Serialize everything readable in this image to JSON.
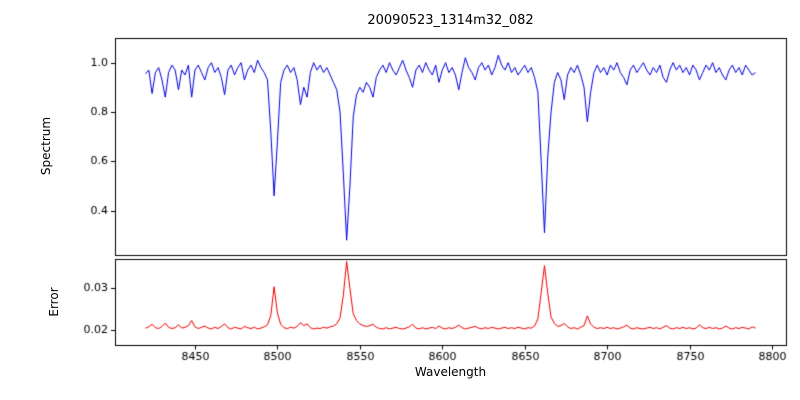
{
  "chart_data": [
    {
      "type": "line",
      "name": "spectrum",
      "title": "20090523_1314m32_082",
      "ylabel": "Spectrum",
      "color": "#0000dd",
      "line_width": 1,
      "x_start": 8420,
      "x_step": 2,
      "xlim": [
        8401.5,
        8808.5
      ],
      "ylim": [
        0.22,
        1.1
      ],
      "yticks": [
        "0.4",
        "0.6",
        "0.8",
        "1.0"
      ],
      "values": [
        0.955,
        0.97,
        0.875,
        0.96,
        0.98,
        0.93,
        0.86,
        0.96,
        0.99,
        0.97,
        0.89,
        0.97,
        0.95,
        0.99,
        0.86,
        0.97,
        0.99,
        0.96,
        0.93,
        0.98,
        1.0,
        0.96,
        0.98,
        0.94,
        0.87,
        0.97,
        0.99,
        0.95,
        0.98,
        1.0,
        0.93,
        0.97,
        0.99,
        0.96,
        1.01,
        0.98,
        0.96,
        0.93,
        0.72,
        0.46,
        0.68,
        0.92,
        0.97,
        0.99,
        0.96,
        0.98,
        0.93,
        0.83,
        0.9,
        0.86,
        0.96,
        1.0,
        0.97,
        0.99,
        0.96,
        0.98,
        0.95,
        0.92,
        0.89,
        0.8,
        0.55,
        0.28,
        0.5,
        0.78,
        0.87,
        0.9,
        0.88,
        0.92,
        0.9,
        0.86,
        0.94,
        0.97,
        0.99,
        0.96,
        1.0,
        0.97,
        0.95,
        0.98,
        1.01,
        0.97,
        0.94,
        0.9,
        0.97,
        0.99,
        0.96,
        1.0,
        0.97,
        0.95,
        0.99,
        0.92,
        0.97,
        1.0,
        0.96,
        0.98,
        0.95,
        0.89,
        0.96,
        1.02,
        0.98,
        0.96,
        0.93,
        0.98,
        1.0,
        0.97,
        0.99,
        0.95,
        0.98,
        1.03,
        0.99,
        0.97,
        1.0,
        0.96,
        0.98,
        0.95,
        0.97,
        0.99,
        0.96,
        0.98,
        0.94,
        0.88,
        0.6,
        0.31,
        0.62,
        0.8,
        0.92,
        0.96,
        0.93,
        0.85,
        0.95,
        0.98,
        0.96,
        0.99,
        0.95,
        0.9,
        0.76,
        0.88,
        0.96,
        0.99,
        0.96,
        0.98,
        0.95,
        0.99,
        0.97,
        1.0,
        0.96,
        0.94,
        0.91,
        0.97,
        0.99,
        0.96,
        0.98,
        1.0,
        0.97,
        0.95,
        0.98,
        0.96,
        0.99,
        0.94,
        0.92,
        0.97,
        1.0,
        0.97,
        0.99,
        0.96,
        0.98,
        0.95,
        0.99,
        0.97,
        0.93,
        0.96,
        0.99,
        0.97,
        1.0,
        0.96,
        0.98,
        0.95,
        0.93,
        0.97,
        0.99,
        0.96,
        0.98,
        0.95,
        0.99,
        0.97,
        0.95,
        0.96
      ]
    },
    {
      "type": "line",
      "name": "error",
      "ylabel": "Error",
      "xlabel": "Wavelength",
      "color": "#ee0000",
      "line_width": 1,
      "x_start": 8420,
      "x_step": 2,
      "xlim": [
        8401.5,
        8808.5
      ],
      "ylim": [
        0.0164,
        0.0369
      ],
      "yticks": [
        "0.02",
        "0.03"
      ],
      "xticks": [
        "8450",
        "8500",
        "8550",
        "8600",
        "8650",
        "8700",
        "8750",
        "8800"
      ],
      "values": [
        0.0204,
        0.0207,
        0.0213,
        0.0205,
        0.0203,
        0.0208,
        0.0216,
        0.0206,
        0.0203,
        0.0205,
        0.0212,
        0.0204,
        0.0206,
        0.021,
        0.0222,
        0.0207,
        0.0203,
        0.0206,
        0.0209,
        0.0204,
        0.0202,
        0.0206,
        0.0203,
        0.0208,
        0.0214,
        0.0205,
        0.0202,
        0.0206,
        0.0204,
        0.0202,
        0.0208,
        0.0205,
        0.0203,
        0.0206,
        0.0202,
        0.0204,
        0.0207,
        0.0212,
        0.0234,
        0.0302,
        0.024,
        0.0213,
        0.0205,
        0.0203,
        0.0206,
        0.0204,
        0.0208,
        0.0217,
        0.021,
        0.0214,
        0.0205,
        0.0202,
        0.0204,
        0.0203,
        0.0206,
        0.0204,
        0.0207,
        0.0209,
        0.0214,
        0.0228,
        0.0282,
        0.0362,
        0.0298,
        0.0238,
        0.0222,
        0.0214,
        0.021,
        0.0208,
        0.021,
        0.0213,
        0.0206,
        0.0203,
        0.0202,
        0.0205,
        0.0202,
        0.0204,
        0.0206,
        0.0203,
        0.0202,
        0.0204,
        0.0207,
        0.0213,
        0.0204,
        0.0202,
        0.0205,
        0.0202,
        0.0204,
        0.0206,
        0.0203,
        0.0209,
        0.0204,
        0.0202,
        0.0205,
        0.0203,
        0.0206,
        0.0211,
        0.0205,
        0.0202,
        0.0204,
        0.0206,
        0.0208,
        0.0204,
        0.0202,
        0.0205,
        0.0203,
        0.0206,
        0.0204,
        0.0202,
        0.0204,
        0.0206,
        0.0203,
        0.0205,
        0.0203,
        0.0206,
        0.0204,
        0.0202,
        0.0205,
        0.0204,
        0.0209,
        0.0226,
        0.0288,
        0.0352,
        0.0286,
        0.023,
        0.0215,
        0.0208,
        0.021,
        0.0215,
        0.0207,
        0.0203,
        0.0205,
        0.0202,
        0.0206,
        0.021,
        0.0233,
        0.0214,
        0.0206,
        0.0203,
        0.0205,
        0.0203,
        0.0206,
        0.0203,
        0.0205,
        0.0202,
        0.0204,
        0.0207,
        0.0211,
        0.0204,
        0.0202,
        0.0205,
        0.0203,
        0.0202,
        0.0204,
        0.0206,
        0.0203,
        0.0205,
        0.0202,
        0.0206,
        0.021,
        0.0204,
        0.0202,
        0.0205,
        0.0203,
        0.0206,
        0.0203,
        0.0205,
        0.0202,
        0.0204,
        0.0212,
        0.0205,
        0.0203,
        0.0206,
        0.0203,
        0.0205,
        0.0202,
        0.0204,
        0.0209,
        0.0204,
        0.0202,
        0.0205,
        0.0203,
        0.0206,
        0.0204,
        0.0202,
        0.0207,
        0.0204
      ]
    }
  ]
}
